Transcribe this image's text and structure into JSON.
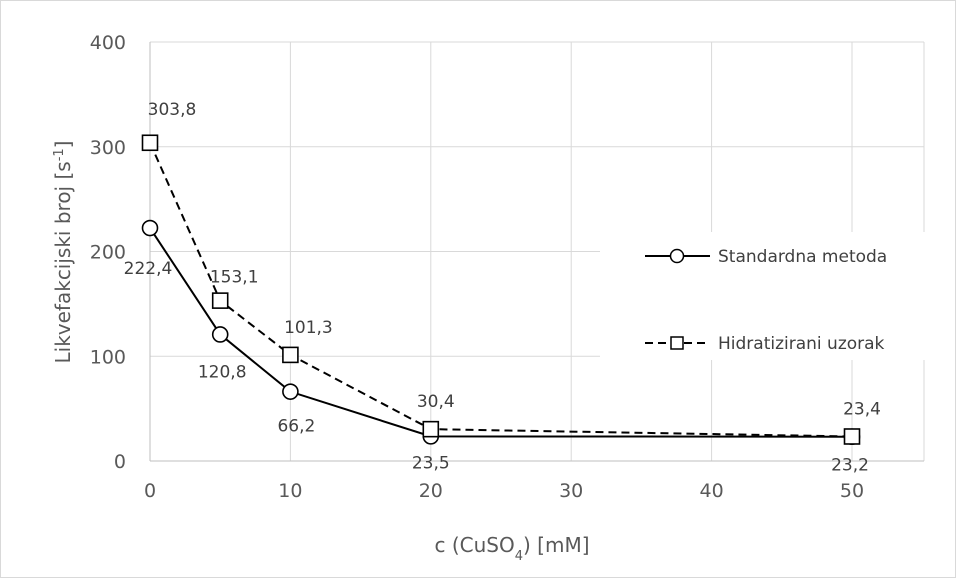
{
  "chart_data": {
    "type": "line",
    "x": [
      0,
      5,
      10,
      20,
      50
    ],
    "x_tick_labels": [
      "0",
      "10",
      "20",
      "30",
      "40",
      "50"
    ],
    "y_tick_labels": [
      "0",
      "100",
      "200",
      "300",
      "400"
    ],
    "xlim": [
      0,
      50
    ],
    "ylim": [
      0,
      400
    ],
    "grid": true,
    "legend_position": "right",
    "xlabel": {
      "prefix": "c (CuSO",
      "sub": "4",
      "suffix": ") [mM]"
    },
    "ylabel": {
      "prefix": "Likvefakcijski broj [s",
      "sup": "-1",
      "suffix": "]"
    },
    "series": [
      {
        "name": "Standardna metoda",
        "values": [
          222.4,
          120.8,
          66.2,
          23.5,
          23.2
        ],
        "labels": [
          "222,4",
          "120,8",
          "66,2",
          "23,5",
          "23,2"
        ],
        "marker": "circle",
        "line_style": "solid",
        "color": "#000000"
      },
      {
        "name": "Hidratizirani uzorak",
        "values": [
          303.8,
          153.1,
          101.3,
          30.4,
          23.4
        ],
        "labels": [
          "303,8",
          "153,1",
          "101,3",
          "30,4",
          "23,4"
        ],
        "marker": "square",
        "line_style": "dashed",
        "color": "#000000"
      }
    ]
  }
}
